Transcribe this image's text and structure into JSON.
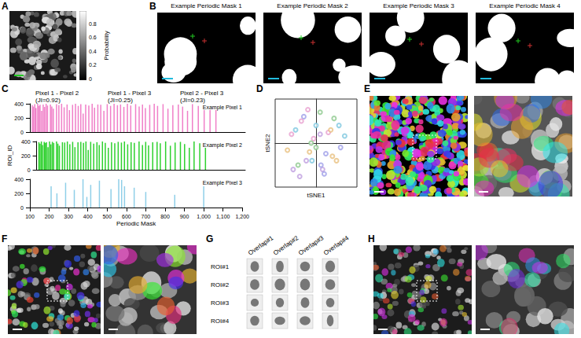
{
  "panels": {
    "A": {
      "letter": "A",
      "colorbar": {
        "label": "Probability",
        "range": [
          0,
          1
        ],
        "ticks": [
          0,
          0.2,
          0.4,
          0.6,
          0.8
        ]
      }
    },
    "B": {
      "letter": "B",
      "titles": [
        "Example Periodic Mask 1",
        "Example Periodic Mask 2",
        "Example Periodic Mask 3",
        "Example Periodic Mask 4"
      ]
    },
    "C": {
      "letter": "C"
    },
    "D": {
      "letter": "D"
    },
    "E": {
      "letter": "E"
    },
    "F": {
      "letter": "F"
    },
    "G": {
      "letter": "G",
      "columns": [
        "Overlap#1",
        "Overlap#2",
        "Overlap#3",
        "Overlap#4"
      ],
      "rows": [
        "ROI#1",
        "ROI#2",
        "ROI#3",
        "ROI#4"
      ]
    },
    "H": {
      "letter": "H"
    }
  },
  "chart_data": [
    {
      "type": "bar",
      "headers": [
        "Pixel 1 - Pixel 2 (JI=0.92)",
        "Pixel 1 - Pixel 3 (JI=0.25)",
        "Pixel 2 - Pixel 3 (JI=0.23)"
      ],
      "xlabel": "Periodic Mask",
      "ylabel": "ROI_ID",
      "xlim": [
        100,
        1200
      ],
      "xticks": [
        100,
        200,
        300,
        400,
        500,
        600,
        700,
        800,
        900,
        1000,
        1100,
        1200
      ],
      "ylim": [
        0,
        400
      ],
      "yticks": [
        0,
        200,
        400
      ],
      "series": [
        {
          "name": "Example Pixel 1",
          "color": "#f07fc8",
          "x": [
            112,
            118,
            125,
            131,
            140,
            146,
            152,
            160,
            168,
            175,
            183,
            190,
            205,
            212,
            220,
            236,
            248,
            262,
            275,
            290,
            302,
            318,
            333,
            347,
            360,
            372,
            385,
            401,
            418,
            430,
            447,
            462,
            478,
            495,
            512,
            530,
            547,
            563,
            580,
            598,
            615,
            640,
            658,
            675,
            690,
            712,
            735,
            752,
            780,
            805,
            830,
            858,
            880,
            905,
            930,
            960,
            990,
            1020,
            1050
          ],
          "values": [
            380,
            360,
            395,
            340,
            400,
            370,
            385,
            300,
            390,
            355,
            400,
            375,
            390,
            360,
            330,
            395,
            380,
            400,
            350,
            390,
            310,
            385,
            400,
            370,
            395,
            260,
            390,
            375,
            400,
            345,
            390,
            385,
            300,
            395,
            370,
            400,
            380,
            390,
            355,
            400,
            375,
            395,
            360,
            390,
            340,
            385,
            400,
            370,
            395,
            330,
            380,
            390,
            360,
            300,
            395,
            370,
            385,
            340,
            390
          ]
        },
        {
          "name": "Example Pixel 2",
          "color": "#2ed12e",
          "x": [
            112,
            118,
            125,
            131,
            140,
            146,
            152,
            160,
            168,
            175,
            183,
            190,
            205,
            212,
            220,
            236,
            248,
            262,
            275,
            290,
            302,
            318,
            333,
            347,
            360,
            372,
            385,
            401,
            418,
            430,
            447,
            462,
            478,
            495,
            512,
            530,
            547,
            563,
            580,
            598,
            615,
            640,
            658,
            675,
            690,
            712,
            735,
            752,
            780,
            805,
            830,
            858,
            880,
            905,
            930,
            960,
            990
          ],
          "values": [
            390,
            370,
            400,
            350,
            395,
            380,
            390,
            320,
            400,
            360,
            395,
            380,
            400,
            370,
            340,
            390,
            385,
            400,
            360,
            395,
            320,
            390,
            395,
            380,
            400,
            280,
            395,
            370,
            390,
            350,
            400,
            380,
            310,
            390,
            375,
            395,
            385,
            400,
            360,
            390,
            380,
            400,
            350,
            395,
            345,
            390,
            395,
            375,
            400,
            340,
            385,
            395,
            365,
            310,
            400,
            375,
            390
          ]
        },
        {
          "name": "Example Pixel 3",
          "color": "#8fcfe8",
          "x": [
            210,
            240,
            285,
            330,
            375,
            395,
            415,
            460,
            520,
            560,
            575,
            590,
            640,
            700,
            850,
            1000
          ],
          "values": [
            300,
            200,
            350,
            250,
            400,
            150,
            320,
            380,
            260,
            400,
            390,
            300,
            280,
            220,
            180,
            300
          ]
        }
      ]
    },
    {
      "type": "scatter",
      "xlabel": "tSNE1",
      "ylabel": "tSNE2",
      "tick_labels": false,
      "xlim": [
        -50,
        50
      ],
      "ylim": [
        -50,
        50
      ],
      "x": [
        -30,
        -22,
        -15,
        -8,
        0,
        8,
        15,
        22,
        30,
        -35,
        -25,
        -12,
        -3,
        5,
        12,
        25,
        35,
        -28,
        -18,
        -6,
        6,
        18,
        28,
        -20,
        -10,
        0,
        10,
        20,
        -5,
        5
      ],
      "values": [
        10,
        -25,
        30,
        -10,
        20,
        -30,
        12,
        28,
        -5,
        -8,
        15,
        -20,
        5,
        35,
        -12,
        -20,
        8,
        -30,
        25,
        0,
        -25,
        15,
        20,
        -38,
        38,
        -5,
        -35,
        -15,
        -20,
        10
      ],
      "colors": [
        "#e8a0d0",
        "#8fc98f",
        "#a0a0e8",
        "#e8c080",
        "#80c8e0",
        "#c0a0e0",
        "#e8a0d0",
        "#8fc98f",
        "#a0a0e8",
        "#e8c080",
        "#80c8e0",
        "#c0a0e0",
        "#e8a0d0",
        "#8fc98f",
        "#a0a0e8",
        "#e8c080",
        "#80c8e0",
        "#c0a0e0",
        "#e8a0d0",
        "#8fc98f",
        "#a0a0e8",
        "#e8c080",
        "#80c8e0",
        "#c0a0e0",
        "#e8a0d0",
        "#8fc98f",
        "#a0a0e8",
        "#e8c080",
        "#80c8e0",
        "#c0a0e0"
      ]
    }
  ]
}
